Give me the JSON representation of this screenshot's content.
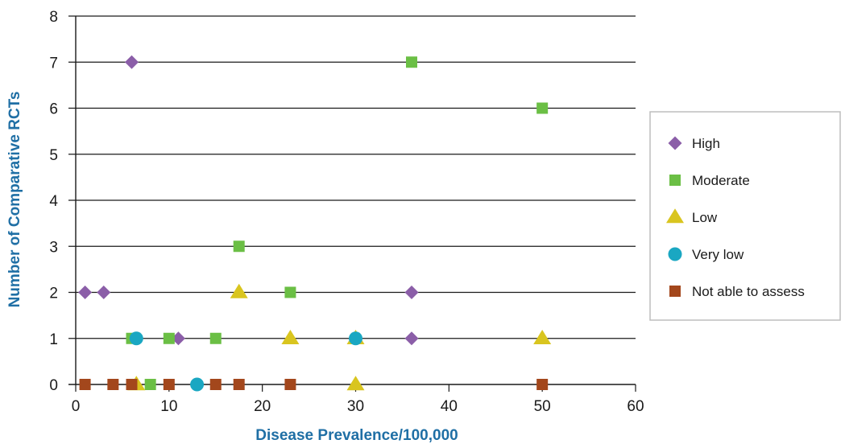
{
  "chart_data": {
    "type": "scatter",
    "xlabel": "Disease Prevalence/100,000",
    "ylabel": "Number of Comparative RCTs",
    "xlim": [
      0,
      60
    ],
    "ylim": [
      0,
      8
    ],
    "x_ticks": [
      0,
      10,
      20,
      30,
      40,
      50,
      60
    ],
    "y_ticks": [
      0,
      1,
      2,
      3,
      4,
      5,
      6,
      7,
      8
    ],
    "grid": "horizontal",
    "legend_position": "right",
    "series": [
      {
        "name": "High",
        "marker": "diamond",
        "color": "#8b5ea8",
        "points": [
          [
            1,
            2
          ],
          [
            3,
            2
          ],
          [
            6,
            7
          ],
          [
            11,
            1
          ],
          [
            36,
            2
          ],
          [
            36,
            1
          ]
        ]
      },
      {
        "name": "Moderate",
        "marker": "square",
        "color": "#6bbf45",
        "points": [
          [
            6,
            1
          ],
          [
            8,
            0
          ],
          [
            10,
            1
          ],
          [
            15,
            1
          ],
          [
            17.5,
            3
          ],
          [
            23,
            2
          ],
          [
            36,
            7
          ],
          [
            50,
            6
          ]
        ]
      },
      {
        "name": "Low",
        "marker": "triangle",
        "color": "#d9c51f",
        "points": [
          [
            6.5,
            0
          ],
          [
            17.5,
            2
          ],
          [
            23,
            1
          ],
          [
            30,
            1
          ],
          [
            30,
            0
          ],
          [
            50,
            1
          ]
        ]
      },
      {
        "name": "Very low",
        "marker": "circle",
        "color": "#1aa7c2",
        "points": [
          [
            6.5,
            1
          ],
          [
            13,
            0
          ],
          [
            30,
            1
          ]
        ]
      },
      {
        "name": "Not able to assess",
        "marker": "square",
        "color": "#a3471c",
        "points": [
          [
            1,
            0
          ],
          [
            4,
            0
          ],
          [
            6,
            0
          ],
          [
            10,
            0
          ],
          [
            15,
            0
          ],
          [
            17.5,
            0
          ],
          [
            23,
            0
          ],
          [
            50,
            0
          ]
        ]
      }
    ]
  }
}
